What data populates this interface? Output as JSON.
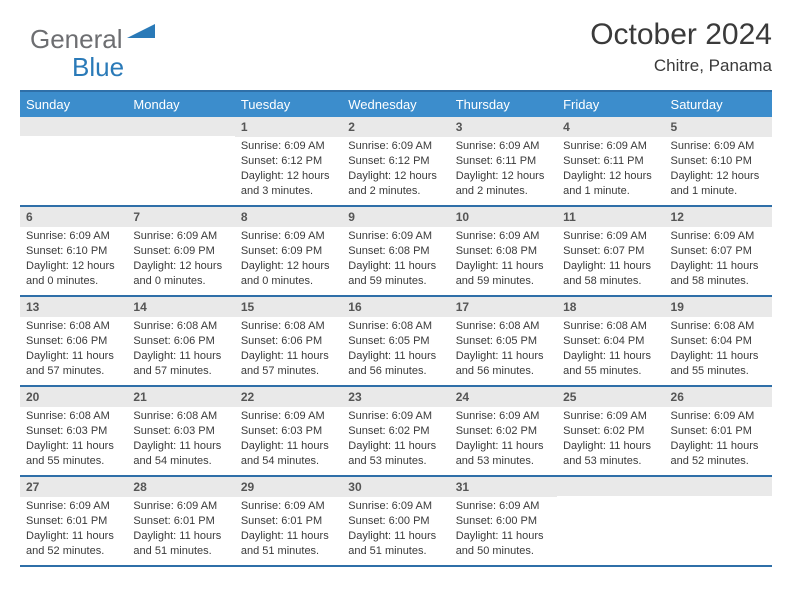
{
  "logo": {
    "general": "General",
    "blue": "Blue",
    "accent_color": "#2a7ab8",
    "gray_color": "#6d6e71"
  },
  "title": "October 2024",
  "location": "Chitre, Panama",
  "colors": {
    "header_bg": "#3c8dcc",
    "header_text": "#ffffff",
    "border": "#2f6fa8",
    "daynum_bg": "#e9e9e9",
    "text": "#3a3a3a"
  },
  "day_labels": [
    "Sunday",
    "Monday",
    "Tuesday",
    "Wednesday",
    "Thursday",
    "Friday",
    "Saturday"
  ],
  "weeks": [
    [
      {
        "n": "",
        "sr": "",
        "ss": "",
        "dl1": "",
        "dl2": ""
      },
      {
        "n": "",
        "sr": "",
        "ss": "",
        "dl1": "",
        "dl2": ""
      },
      {
        "n": "1",
        "sr": "Sunrise: 6:09 AM",
        "ss": "Sunset: 6:12 PM",
        "dl1": "Daylight: 12 hours",
        "dl2": "and 3 minutes."
      },
      {
        "n": "2",
        "sr": "Sunrise: 6:09 AM",
        "ss": "Sunset: 6:12 PM",
        "dl1": "Daylight: 12 hours",
        "dl2": "and 2 minutes."
      },
      {
        "n": "3",
        "sr": "Sunrise: 6:09 AM",
        "ss": "Sunset: 6:11 PM",
        "dl1": "Daylight: 12 hours",
        "dl2": "and 2 minutes."
      },
      {
        "n": "4",
        "sr": "Sunrise: 6:09 AM",
        "ss": "Sunset: 6:11 PM",
        "dl1": "Daylight: 12 hours",
        "dl2": "and 1 minute."
      },
      {
        "n": "5",
        "sr": "Sunrise: 6:09 AM",
        "ss": "Sunset: 6:10 PM",
        "dl1": "Daylight: 12 hours",
        "dl2": "and 1 minute."
      }
    ],
    [
      {
        "n": "6",
        "sr": "Sunrise: 6:09 AM",
        "ss": "Sunset: 6:10 PM",
        "dl1": "Daylight: 12 hours",
        "dl2": "and 0 minutes."
      },
      {
        "n": "7",
        "sr": "Sunrise: 6:09 AM",
        "ss": "Sunset: 6:09 PM",
        "dl1": "Daylight: 12 hours",
        "dl2": "and 0 minutes."
      },
      {
        "n": "8",
        "sr": "Sunrise: 6:09 AM",
        "ss": "Sunset: 6:09 PM",
        "dl1": "Daylight: 12 hours",
        "dl2": "and 0 minutes."
      },
      {
        "n": "9",
        "sr": "Sunrise: 6:09 AM",
        "ss": "Sunset: 6:08 PM",
        "dl1": "Daylight: 11 hours",
        "dl2": "and 59 minutes."
      },
      {
        "n": "10",
        "sr": "Sunrise: 6:09 AM",
        "ss": "Sunset: 6:08 PM",
        "dl1": "Daylight: 11 hours",
        "dl2": "and 59 minutes."
      },
      {
        "n": "11",
        "sr": "Sunrise: 6:09 AM",
        "ss": "Sunset: 6:07 PM",
        "dl1": "Daylight: 11 hours",
        "dl2": "and 58 minutes."
      },
      {
        "n": "12",
        "sr": "Sunrise: 6:09 AM",
        "ss": "Sunset: 6:07 PM",
        "dl1": "Daylight: 11 hours",
        "dl2": "and 58 minutes."
      }
    ],
    [
      {
        "n": "13",
        "sr": "Sunrise: 6:08 AM",
        "ss": "Sunset: 6:06 PM",
        "dl1": "Daylight: 11 hours",
        "dl2": "and 57 minutes."
      },
      {
        "n": "14",
        "sr": "Sunrise: 6:08 AM",
        "ss": "Sunset: 6:06 PM",
        "dl1": "Daylight: 11 hours",
        "dl2": "and 57 minutes."
      },
      {
        "n": "15",
        "sr": "Sunrise: 6:08 AM",
        "ss": "Sunset: 6:06 PM",
        "dl1": "Daylight: 11 hours",
        "dl2": "and 57 minutes."
      },
      {
        "n": "16",
        "sr": "Sunrise: 6:08 AM",
        "ss": "Sunset: 6:05 PM",
        "dl1": "Daylight: 11 hours",
        "dl2": "and 56 minutes."
      },
      {
        "n": "17",
        "sr": "Sunrise: 6:08 AM",
        "ss": "Sunset: 6:05 PM",
        "dl1": "Daylight: 11 hours",
        "dl2": "and 56 minutes."
      },
      {
        "n": "18",
        "sr": "Sunrise: 6:08 AM",
        "ss": "Sunset: 6:04 PM",
        "dl1": "Daylight: 11 hours",
        "dl2": "and 55 minutes."
      },
      {
        "n": "19",
        "sr": "Sunrise: 6:08 AM",
        "ss": "Sunset: 6:04 PM",
        "dl1": "Daylight: 11 hours",
        "dl2": "and 55 minutes."
      }
    ],
    [
      {
        "n": "20",
        "sr": "Sunrise: 6:08 AM",
        "ss": "Sunset: 6:03 PM",
        "dl1": "Daylight: 11 hours",
        "dl2": "and 55 minutes."
      },
      {
        "n": "21",
        "sr": "Sunrise: 6:08 AM",
        "ss": "Sunset: 6:03 PM",
        "dl1": "Daylight: 11 hours",
        "dl2": "and 54 minutes."
      },
      {
        "n": "22",
        "sr": "Sunrise: 6:09 AM",
        "ss": "Sunset: 6:03 PM",
        "dl1": "Daylight: 11 hours",
        "dl2": "and 54 minutes."
      },
      {
        "n": "23",
        "sr": "Sunrise: 6:09 AM",
        "ss": "Sunset: 6:02 PM",
        "dl1": "Daylight: 11 hours",
        "dl2": "and 53 minutes."
      },
      {
        "n": "24",
        "sr": "Sunrise: 6:09 AM",
        "ss": "Sunset: 6:02 PM",
        "dl1": "Daylight: 11 hours",
        "dl2": "and 53 minutes."
      },
      {
        "n": "25",
        "sr": "Sunrise: 6:09 AM",
        "ss": "Sunset: 6:02 PM",
        "dl1": "Daylight: 11 hours",
        "dl2": "and 53 minutes."
      },
      {
        "n": "26",
        "sr": "Sunrise: 6:09 AM",
        "ss": "Sunset: 6:01 PM",
        "dl1": "Daylight: 11 hours",
        "dl2": "and 52 minutes."
      }
    ],
    [
      {
        "n": "27",
        "sr": "Sunrise: 6:09 AM",
        "ss": "Sunset: 6:01 PM",
        "dl1": "Daylight: 11 hours",
        "dl2": "and 52 minutes."
      },
      {
        "n": "28",
        "sr": "Sunrise: 6:09 AM",
        "ss": "Sunset: 6:01 PM",
        "dl1": "Daylight: 11 hours",
        "dl2": "and 51 minutes."
      },
      {
        "n": "29",
        "sr": "Sunrise: 6:09 AM",
        "ss": "Sunset: 6:01 PM",
        "dl1": "Daylight: 11 hours",
        "dl2": "and 51 minutes."
      },
      {
        "n": "30",
        "sr": "Sunrise: 6:09 AM",
        "ss": "Sunset: 6:00 PM",
        "dl1": "Daylight: 11 hours",
        "dl2": "and 51 minutes."
      },
      {
        "n": "31",
        "sr": "Sunrise: 6:09 AM",
        "ss": "Sunset: 6:00 PM",
        "dl1": "Daylight: 11 hours",
        "dl2": "and 50 minutes."
      },
      {
        "n": "",
        "sr": "",
        "ss": "",
        "dl1": "",
        "dl2": ""
      },
      {
        "n": "",
        "sr": "",
        "ss": "",
        "dl1": "",
        "dl2": ""
      }
    ]
  ]
}
